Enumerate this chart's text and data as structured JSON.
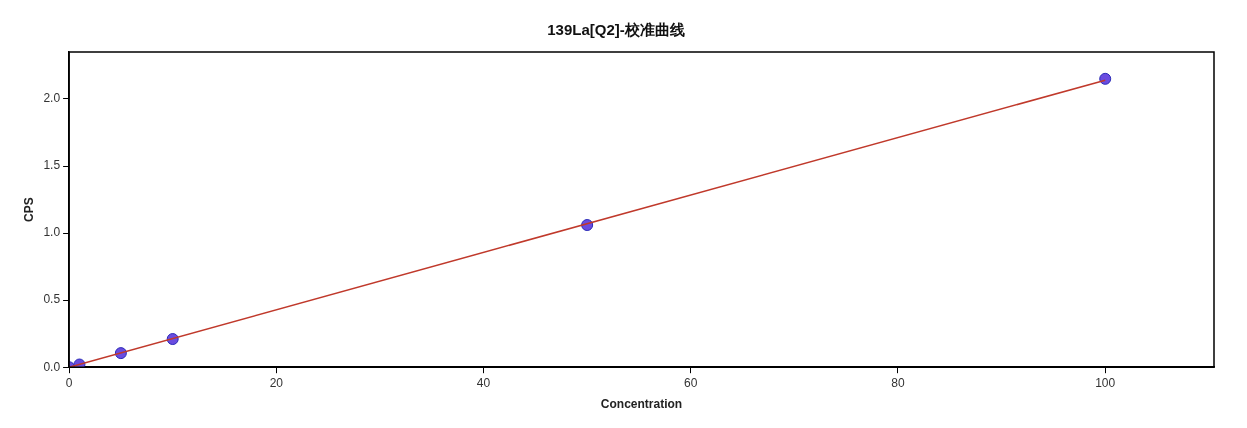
{
  "chart_data": {
    "type": "scatter",
    "title": "139La[Q2]-校准曲线",
    "xlabel": "Concentration",
    "ylabel": "CPS",
    "xlim": [
      0,
      110.5
    ],
    "xticks": [
      0,
      20,
      40,
      60,
      80,
      100
    ],
    "ylim": [
      0,
      2.35
    ],
    "yticks": [
      {
        "value": 0,
        "label": "0.0"
      },
      {
        "value": 0.5,
        "label": "0.5"
      },
      {
        "value": 1,
        "label": "1.0"
      },
      {
        "value": 1.5,
        "label": "1.5"
      },
      {
        "value": 2,
        "label": "2.0"
      }
    ],
    "grid": false,
    "legend": false,
    "marker": "circle",
    "series": [
      {
        "type": "line",
        "color": "#c0392b",
        "x": [
          0,
          100
        ],
        "values": [
          0,
          2.14
        ],
        "marker": "none",
        "line_style": "solid"
      },
      {
        "color": "#6a4ce0",
        "x": [
          0,
          1,
          5,
          10,
          50,
          100
        ],
        "values": [
          0,
          0.02,
          0.105,
          0.21,
          1.06,
          2.15
        ]
      }
    ]
  }
}
